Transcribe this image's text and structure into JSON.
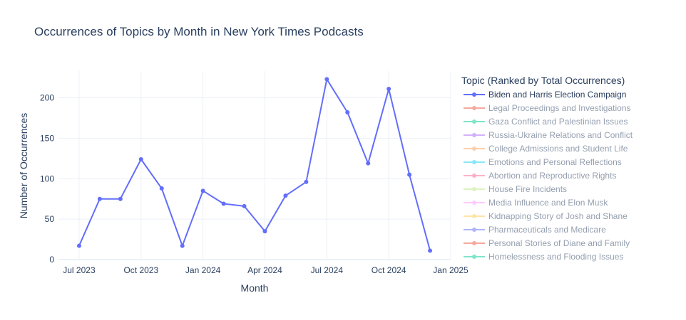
{
  "chart_data": {
    "type": "line",
    "title": "Occurrences of Topics by Month in New York Times Podcasts",
    "xlabel": "Month",
    "ylabel": "Number of Occurrences",
    "x_tick_labels": [
      "Jul 2023",
      "Oct 2023",
      "Jan 2024",
      "Apr 2024",
      "Jul 2024",
      "Oct 2024",
      "Jan 2025"
    ],
    "y_ticks": [
      0,
      50,
      100,
      150,
      200
    ],
    "ylim": [
      0,
      233
    ],
    "grid": true,
    "legend_title": "Topic (Ranked by Total Occurrences)",
    "legend_position": "right",
    "x": [
      "2023-07",
      "2023-08",
      "2023-09",
      "2023-10",
      "2023-11",
      "2023-12",
      "2024-01",
      "2024-02",
      "2024-03",
      "2024-04",
      "2024-05",
      "2024-06",
      "2024-07",
      "2024-08",
      "2024-09",
      "2024-10",
      "2024-11",
      "2024-12"
    ],
    "series": [
      {
        "name": "Biden and Harris Election Campaign",
        "color": "#636efa",
        "visible": true,
        "values": [
          17,
          75,
          75,
          124,
          88,
          17,
          85,
          69,
          66,
          35,
          79,
          96,
          223,
          182,
          119,
          211,
          105,
          11
        ]
      },
      {
        "name": "Legal Proceedings and Investigations",
        "color": "#EF553B",
        "visible": false
      },
      {
        "name": "Gaza Conflict and Palestinian Issues",
        "color": "#00cc96",
        "visible": false
      },
      {
        "name": "Russia-Ukraine Relations and Conflict",
        "color": "#ab63fa",
        "visible": false
      },
      {
        "name": "College Admissions and Student Life",
        "color": "#FFA15A",
        "visible": false
      },
      {
        "name": "Emotions and Personal Reflections",
        "color": "#19d3f3",
        "visible": false
      },
      {
        "name": "Abortion and Reproductive Rights",
        "color": "#FF6692",
        "visible": false
      },
      {
        "name": "House Fire Incidents",
        "color": "#B6E880",
        "visible": false
      },
      {
        "name": "Media Influence and Elon Musk",
        "color": "#FF97FF",
        "visible": false
      },
      {
        "name": "Kidnapping Story of Josh and Shane",
        "color": "#FECB52",
        "visible": false
      },
      {
        "name": "Pharmaceuticals and Medicare",
        "color": "#636efa",
        "visible": false
      },
      {
        "name": "Personal Stories of Diane and Family",
        "color": "#EF553B",
        "visible": false
      },
      {
        "name": "Homelessness and Flooding Issues",
        "color": "#00cc96",
        "visible": false
      }
    ]
  }
}
